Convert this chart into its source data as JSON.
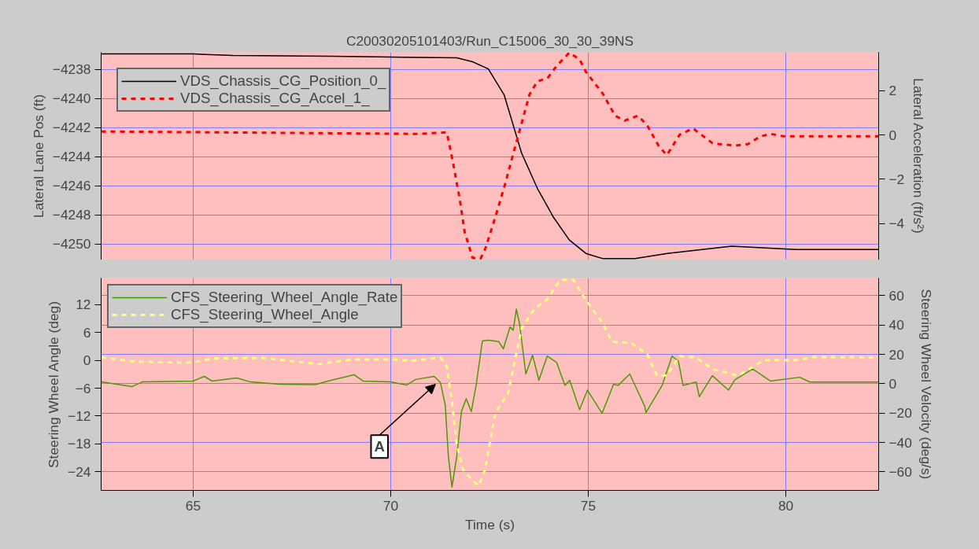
{
  "chart_data": [
    {
      "type": "line",
      "title": "C20030205101403/Run_C15006_30_30_39NS",
      "ylabel": "Lateral Lane Pos (ft)",
      "y2label": "Lateral Acceleration (ft/s²)",
      "xlim": [
        62.67,
        82.35
      ],
      "xticks": [
        65,
        70,
        75,
        80
      ],
      "ylim": [
        -4251.1,
        -4236.83
      ],
      "yticks": [
        -4250,
        -4248,
        -4246,
        -4244,
        -4242,
        -4240,
        -4238
      ],
      "y2lim": [
        -5.65,
        3.74
      ],
      "y2ticks": [
        -4,
        -2,
        0,
        2
      ],
      "grid": true,
      "legend": "top left",
      "tick_labels": "y",
      "series": [
        {
          "name": "VDS_Chassis_CG_Position_0_",
          "color": "#000000",
          "line_style": "solid",
          "x": [
            62.67,
            65.0,
            66.0,
            68.49,
            70.0,
            71.67,
            72.07,
            72.47,
            72.87,
            73.31,
            73.71,
            74.12,
            74.52,
            74.94,
            75.36,
            76.18,
            77.0,
            78.63,
            80.26,
            82.35
          ],
          "values": [
            -4236.94,
            -4236.94,
            -4237.05,
            -4237.1,
            -4237.16,
            -4237.21,
            -4237.48,
            -4237.97,
            -4239.75,
            -4243.74,
            -4246.17,
            -4248.17,
            -4249.73,
            -4250.65,
            -4251.0,
            -4251.0,
            -4250.65,
            -4250.16,
            -4250.38,
            -4250.38
          ]
        },
        {
          "name": "VDS_Chassis_CG_Accel_1_",
          "color": "#ff0000",
          "line_style": "dashed",
          "axis": "y2",
          "x": [
            62.67,
            70.7,
            71.42,
            71.57,
            71.75,
            71.87,
            72.07,
            72.27,
            72.39,
            72.65,
            72.89,
            73.13,
            73.31,
            73.51,
            73.71,
            73.97,
            74.2,
            74.52,
            74.78,
            74.94,
            75.36,
            75.68,
            75.92,
            76.26,
            76.49,
            76.79,
            76.99,
            77.31,
            77.65,
            78.15,
            78.71,
            79.04,
            79.36,
            79.62,
            79.94,
            82.35
          ],
          "values": [
            0.16,
            0.05,
            0.12,
            -1.19,
            -2.93,
            -4.38,
            -5.55,
            -5.6,
            -5.16,
            -3.7,
            -2.25,
            -0.66,
            0.51,
            1.82,
            2.43,
            2.57,
            3.13,
            3.72,
            3.42,
            2.86,
            1.89,
            0.87,
            0.65,
            0.87,
            0.44,
            -0.52,
            -0.91,
            0.01,
            0.3,
            -0.38,
            -0.48,
            -0.41,
            -0.06,
            0.05,
            -0.06,
            -0.06
          ]
        }
      ]
    },
    {
      "type": "line",
      "xlabel": "Time (s)",
      "ylabel": "Steering Wheel Angle (deg)",
      "y2label": "Steering Wheel Velocity (deg/s)",
      "xlim": [
        62.67,
        82.35
      ],
      "xticks": [
        65,
        70,
        75,
        80
      ],
      "ylim": [
        -28.0,
        17.7
      ],
      "yticks": [
        -24,
        -18,
        -12,
        -6,
        0,
        6,
        12
      ],
      "y2lim": [
        -72.65,
        71.95
      ],
      "y2ticks": [
        -60,
        -40,
        -20,
        0,
        20,
        40,
        60
      ],
      "grid": "xy2",
      "legend": "top left",
      "annotations": [
        "A"
      ],
      "series": [
        {
          "name": "CFS_Steering_Wheel_Angle_Rate",
          "color": "#4c9900",
          "line_style": "solid",
          "axis": "y2",
          "x": [
            62.68,
            63.45,
            63.71,
            65.0,
            65.28,
            65.48,
            66.1,
            66.45,
            67.19,
            68.09,
            68.41,
            69.07,
            69.3,
            70.0,
            70.4,
            70.62,
            71.1,
            71.26,
            71.38,
            71.46,
            71.55,
            71.67,
            71.79,
            71.91,
            72.04,
            72.16,
            72.32,
            72.47,
            72.73,
            72.85,
            73.02,
            73.1,
            73.18,
            73.26,
            73.42,
            73.59,
            73.75,
            73.96,
            74.2,
            74.41,
            74.53,
            74.78,
            74.98,
            75.35,
            75.64,
            75.76,
            76.05,
            76.43,
            76.46,
            76.87,
            77.12,
            77.28,
            77.4,
            77.73,
            77.81,
            78.14,
            78.55,
            78.71,
            79.16,
            79.61,
            80.35,
            80.61,
            82.35
          ],
          "values": [
            1.3,
            -2.0,
            1.2,
            1.8,
            5.0,
            1.8,
            3.9,
            1.2,
            -0.4,
            -0.6,
            1.8,
            6.1,
            1.8,
            1.2,
            -0.9,
            2.8,
            5.0,
            0.7,
            -14.6,
            -49.7,
            -70.4,
            -49.7,
            -19.0,
            -10.2,
            -19.0,
            -1.4,
            29.1,
            29.6,
            28.7,
            23.8,
            38.6,
            36.4,
            50.8,
            40.9,
            6.6,
            19.5,
            2.3,
            18.8,
            14.4,
            -1.1,
            2.3,
            -17.6,
            -4.4,
            -20.2,
            -0.4,
            -1.1,
            6.6,
            -15.4,
            -19.7,
            -1.1,
            18.8,
            15.4,
            -1.1,
            1.2,
            -8.8,
            5.5,
            -4.4,
            2.7,
            10.0,
            1.8,
            4.4,
            1.1,
            1.1
          ]
        },
        {
          "name": "CFS_Steering_Wheel_Angle",
          "color": "#ffff80",
          "line_style": "dashed",
          "x": [
            62.68,
            63.53,
            65.0,
            65.48,
            66.87,
            67.27,
            68.17,
            69.07,
            70.0,
            70.6,
            71.26,
            71.42,
            71.55,
            71.67,
            71.83,
            72.07,
            72.23,
            72.39,
            72.65,
            72.97,
            73.14,
            73.31,
            73.63,
            73.96,
            74.29,
            74.62,
            74.95,
            75.35,
            75.6,
            76.09,
            76.49,
            76.74,
            76.99,
            77.31,
            77.73,
            78.14,
            78.79,
            79.21,
            79.45,
            80.27,
            80.68,
            82.35
          ],
          "values": [
            0.6,
            -0.3,
            -0.5,
            0.4,
            0.5,
            0.0,
            -0.8,
            0.2,
            0.2,
            -0.1,
            0.6,
            -1.4,
            -9.0,
            -18.0,
            -23.5,
            -25.9,
            -27.0,
            -23.5,
            -11.3,
            -7.1,
            -0.2,
            6.8,
            11.0,
            13.1,
            17.3,
            17.3,
            12.8,
            8.2,
            4.0,
            3.7,
            1.3,
            -3.3,
            -3.3,
            0.9,
            0.6,
            -1.9,
            -3.3,
            -1.2,
            0.0,
            0.0,
            0.7,
            0.6
          ]
        }
      ]
    }
  ]
}
